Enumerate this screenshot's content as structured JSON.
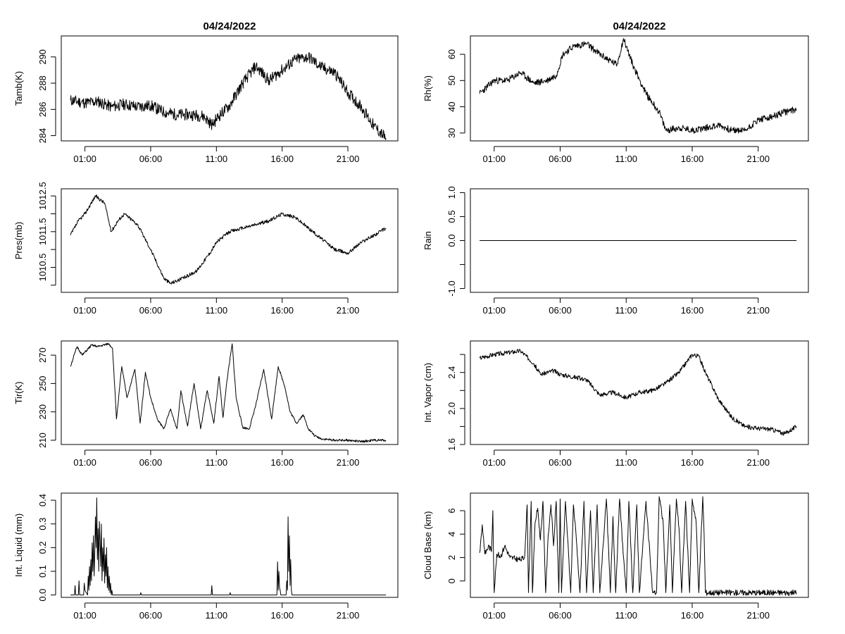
{
  "figure": {
    "left_title": "04/24/2022",
    "right_title": "04/24/2022"
  },
  "x_axis": {
    "range_hours": [
      -0.8,
      24.8
    ],
    "data_span_hours": [
      -0.1,
      23.9
    ],
    "tick_hours": [
      1,
      6,
      11,
      16,
      21
    ],
    "tick_labels": [
      "01:00",
      "06:00",
      "11:00",
      "16:00",
      "21:00"
    ]
  },
  "chart_data": [
    {
      "id": "tamb",
      "type": "line",
      "column": "left",
      "row": 0,
      "ylabel": "Tamb(K)",
      "ylim": [
        283.6,
        291.6
      ],
      "yticks": [
        284,
        286,
        288,
        290
      ],
      "ytick_labels": [
        "284",
        "286",
        "288",
        "290"
      ],
      "noise": 0.45,
      "seed": 11,
      "x": [
        -0.1,
        1,
        2,
        3,
        4,
        5,
        6,
        7,
        8,
        9,
        10,
        10.7,
        11,
        12,
        13,
        14,
        15,
        16,
        17,
        18,
        19,
        20,
        21,
        22,
        23,
        23.9
      ],
      "y": [
        286.7,
        286.5,
        286.6,
        286.2,
        286.4,
        286.2,
        286.3,
        285.8,
        285.6,
        285.6,
        285.5,
        284.8,
        285.3,
        286.3,
        288.0,
        289.3,
        288.2,
        289.0,
        289.8,
        290.0,
        289.2,
        288.8,
        287.3,
        286.2,
        284.7,
        283.8
      ]
    },
    {
      "id": "rh",
      "type": "line",
      "column": "right",
      "row": 0,
      "ylabel": "Rh(%)",
      "ylim": [
        27,
        67
      ],
      "yticks": [
        30,
        40,
        50,
        60
      ],
      "ytick_labels": [
        "30",
        "40",
        "50",
        "60"
      ],
      "noise": 1.3,
      "seed": 23,
      "x": [
        -0.1,
        1,
        2,
        3,
        4,
        5,
        5.7,
        6.2,
        7,
        8,
        9,
        10.3,
        10.8,
        11.5,
        12.5,
        13.5,
        14,
        15,
        16,
        17,
        18,
        19,
        20,
        21,
        22,
        23,
        23.9
      ],
      "y": [
        45,
        50,
        50,
        53,
        49,
        50,
        52,
        60,
        63,
        64,
        60,
        56,
        66,
        56,
        45,
        38,
        31,
        32,
        31,
        32,
        33,
        31,
        31,
        35,
        36,
        38,
        39
      ]
    },
    {
      "id": "pres",
      "type": "line",
      "column": "left",
      "row": 1,
      "ylabel": "Pres(mb)",
      "ylim": [
        1009.8,
        1012.7
      ],
      "yticks": [
        1010.5,
        1011.5,
        1012.5
      ],
      "ytick_labels": [
        "1010.5",
        "1011.5",
        "1012.5"
      ],
      "minor_yticks": [
        1010.0,
        1011.0,
        1012.0
      ],
      "noise": 0.05,
      "seed": 37,
      "x": [
        -0.1,
        0.5,
        1,
        1.8,
        2.5,
        3,
        3.5,
        4,
        5,
        6,
        7,
        7.5,
        8.5,
        9.5,
        10.5,
        11,
        12,
        13,
        14,
        15,
        16,
        17,
        18,
        19,
        20,
        21,
        22,
        23,
        23.9
      ],
      "y": [
        1011.4,
        1011.8,
        1012.0,
        1012.5,
        1012.3,
        1011.5,
        1011.8,
        1012.0,
        1011.7,
        1011.0,
        1010.2,
        1010.05,
        1010.2,
        1010.4,
        1010.9,
        1011.2,
        1011.5,
        1011.6,
        1011.7,
        1011.8,
        1012.0,
        1011.9,
        1011.6,
        1011.3,
        1011.0,
        1010.9,
        1011.2,
        1011.4,
        1011.6
      ]
    },
    {
      "id": "rain",
      "type": "line",
      "column": "right",
      "row": 1,
      "ylabel": "Rain",
      "ylim": [
        -1.08,
        1.08
      ],
      "yticks": [
        -1.0,
        0.0,
        0.5,
        1.0
      ],
      "ytick_labels": [
        "-1.0",
        "0.0",
        "0.5",
        "1.0"
      ],
      "minor_yticks": [
        -0.5
      ],
      "noise": 0,
      "seed": 0,
      "x": [
        -0.1,
        23.9
      ],
      "y": [
        0,
        0
      ]
    },
    {
      "id": "tir",
      "type": "line",
      "column": "left",
      "row": 2,
      "ylabel": "Tir(K)",
      "ylim": [
        207,
        280
      ],
      "yticks": [
        210,
        230,
        250,
        270
      ],
      "ytick_labels": [
        "210",
        "230",
        "250",
        "270"
      ],
      "noise": 0.8,
      "seed": 51,
      "x": [
        -0.1,
        0.4,
        0.8,
        1.5,
        2,
        2.8,
        3.1,
        3.4,
        3.8,
        4.2,
        4.8,
        5.2,
        5.6,
        6,
        6.5,
        7,
        7.5,
        8,
        8.3,
        8.8,
        9.3,
        9.8,
        10.3,
        10.8,
        11.2,
        11.5,
        11.8,
        12.2,
        12.5,
        13,
        13.5,
        14,
        14.6,
        15.2,
        15.7,
        16.2,
        16.6,
        17.1,
        17.6,
        18,
        18.5,
        19,
        20,
        21,
        22,
        23,
        23.9
      ],
      "y": [
        262,
        276,
        270,
        277,
        276,
        278,
        275,
        225,
        262,
        240,
        260,
        222,
        258,
        240,
        225,
        218,
        232,
        218,
        245,
        220,
        250,
        218,
        245,
        222,
        255,
        226,
        252,
        278,
        240,
        219,
        218,
        235,
        260,
        225,
        262,
        248,
        230,
        222,
        228,
        218,
        213,
        211,
        210,
        210,
        209,
        210,
        210
      ]
    },
    {
      "id": "vapor",
      "type": "line",
      "column": "right",
      "row": 2,
      "ylabel": "Int. Vapor (cm)",
      "ylim": [
        1.6,
        2.75
      ],
      "yticks": [
        1.6,
        2.0,
        2.4
      ],
      "ytick_labels": [
        "1.6",
        "2.0",
        "2.4"
      ],
      "minor_yticks": [
        1.8,
        2.2,
        2.6
      ],
      "noise": 0.025,
      "seed": 67,
      "x": [
        -0.1,
        1,
        2,
        3,
        4,
        4.5,
        5.5,
        6,
        7,
        8,
        9,
        10,
        11,
        12,
        13,
        14,
        15,
        16,
        16.5,
        17,
        18,
        19,
        20,
        21,
        22,
        23,
        23.9
      ],
      "y": [
        2.56,
        2.6,
        2.62,
        2.64,
        2.5,
        2.38,
        2.42,
        2.38,
        2.35,
        2.32,
        2.15,
        2.18,
        2.12,
        2.18,
        2.2,
        2.28,
        2.4,
        2.6,
        2.58,
        2.4,
        2.1,
        1.9,
        1.8,
        1.78,
        1.77,
        1.72,
        1.8
      ]
    },
    {
      "id": "liquid",
      "type": "line",
      "column": "left",
      "row": 3,
      "ylabel": "Int. Liquid (mm)",
      "ylim": [
        -0.01,
        0.43
      ],
      "yticks": [
        0.0,
        0.1,
        0.2,
        0.3,
        0.4
      ],
      "ytick_labels": [
        "0.0",
        "0.1",
        "0.2",
        "0.3",
        "0.4"
      ],
      "noise": 0,
      "seed": 0,
      "x": [
        -0.1,
        0.2,
        0.25,
        0.3,
        0.5,
        0.55,
        0.6,
        0.9,
        0.95,
        1.0,
        1.2,
        1.25,
        1.3,
        1.35,
        1.4,
        1.45,
        1.5,
        1.55,
        1.6,
        1.65,
        1.7,
        1.75,
        1.8,
        1.85,
        1.9,
        1.95,
        2.0,
        2.05,
        2.1,
        2.15,
        2.2,
        2.25,
        2.3,
        2.35,
        2.4,
        2.45,
        2.5,
        2.55,
        2.6,
        2.65,
        2.7,
        2.75,
        2.8,
        2.85,
        2.9,
        2.95,
        3.0,
        3.05,
        3.1,
        3.2,
        5.2,
        5.25,
        5.3,
        10.6,
        10.65,
        10.7,
        12.0,
        12.05,
        12.1,
        15.6,
        15.65,
        15.7,
        15.75,
        15.8,
        15.85,
        15.9,
        16.3,
        16.35,
        16.4,
        16.45,
        16.5,
        16.55,
        16.6,
        16.65,
        16.7,
        16.75,
        23.9
      ],
      "y": [
        0,
        0,
        0.04,
        0,
        0,
        0.06,
        0,
        0,
        0.05,
        0.02,
        0,
        0.08,
        0.02,
        0.12,
        0.04,
        0.15,
        0.06,
        0.22,
        0.1,
        0.25,
        0.08,
        0.18,
        0.33,
        0.2,
        0.41,
        0.15,
        0.28,
        0.1,
        0.31,
        0.22,
        0.12,
        0.3,
        0.06,
        0.2,
        0.1,
        0.24,
        0.05,
        0.17,
        0.08,
        0.2,
        0.03,
        0.12,
        0.02,
        0.08,
        0.01,
        0.05,
        0,
        0.02,
        0,
        0,
        0,
        0.01,
        0,
        0,
        0.04,
        0,
        0,
        0.01,
        0,
        0,
        0.14,
        0.02,
        0.1,
        0.03,
        0.02,
        0,
        0,
        0.06,
        0.02,
        0.33,
        0.1,
        0.25,
        0.04,
        0.15,
        0.02,
        0,
        0
      ]
    },
    {
      "id": "cloud",
      "type": "line",
      "column": "right",
      "row": 3,
      "ylabel": "Cloud Base (km)",
      "ylim": [
        -1.4,
        7.5
      ],
      "yticks": [
        0,
        2,
        4,
        6
      ],
      "ytick_labels": [
        "0",
        "2",
        "4",
        "6"
      ],
      "noise": 0.25,
      "seed": 83,
      "x": [
        -0.1,
        0.1,
        0.3,
        0.6,
        0.8,
        0.9,
        1.0,
        1.2,
        1.5,
        1.8,
        2.2,
        2.6,
        3.0,
        3.3,
        3.5,
        3.6,
        3.8,
        3.9,
        4.1,
        4.3,
        4.5,
        4.7,
        4.9,
        5.1,
        5.3,
        5.5,
        5.7,
        5.9,
        6.0,
        6.1,
        6.4,
        6.8,
        7.0,
        7.2,
        7.5,
        7.8,
        8.0,
        8.3,
        8.5,
        8.8,
        9.0,
        9.5,
        9.8,
        10.0,
        10.2,
        10.5,
        10.8,
        11.0,
        11.2,
        11.5,
        11.8,
        12.0,
        12.5,
        13.0,
        13.3,
        13.5,
        13.8,
        14.0,
        14.3,
        14.5,
        14.8,
        15.0,
        15.2,
        15.5,
        15.8,
        16.0,
        16.3,
        16.5,
        16.8,
        16.9,
        17.0,
        23.9
      ],
      "y": [
        2.4,
        4.8,
        2.3,
        3.0,
        2.5,
        6.0,
        -1.0,
        2.3,
        2.1,
        3.0,
        2.0,
        1.9,
        1.8,
        2.0,
        6.5,
        -1.0,
        6.8,
        -1.0,
        5.0,
        6.2,
        3.5,
        6.8,
        -1.0,
        4.0,
        6.5,
        3.0,
        6.8,
        -1.0,
        7.0,
        -1.0,
        6.8,
        -1.0,
        6.5,
        4.0,
        -1.0,
        6.8,
        -1.0,
        6.0,
        -1.0,
        6.5,
        -1.0,
        7.0,
        -1.0,
        5.5,
        -1.0,
        7.0,
        2.0,
        -1.0,
        6.8,
        -1.0,
        6.5,
        -1.0,
        6.8,
        -1.0,
        -1.0,
        7.2,
        5.0,
        -1.0,
        6.5,
        -1.0,
        7.0,
        4.5,
        -1.0,
        6.8,
        -1.0,
        7.0,
        5.0,
        -1.0,
        7.2,
        4.0,
        -1.0,
        -1.0
      ]
    }
  ]
}
